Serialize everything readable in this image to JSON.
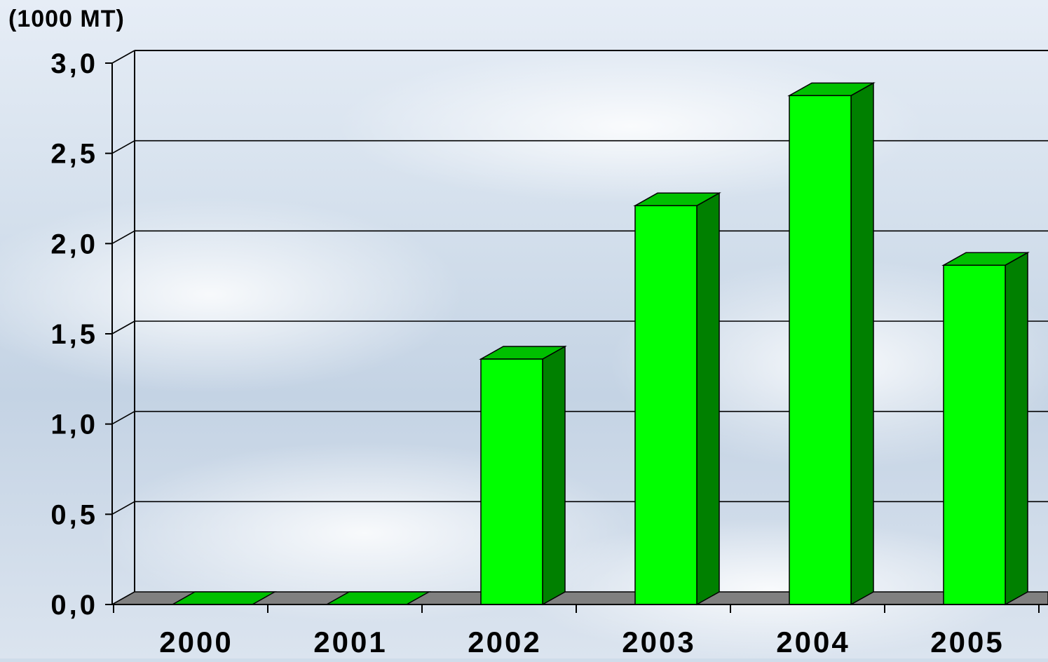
{
  "chart_data": {
    "type": "bar",
    "unit_label": "(1000 MT)",
    "categories": [
      "2000",
      "2001",
      "2002",
      "2003",
      "2004",
      "2005"
    ],
    "values": [
      0,
      0,
      1.36,
      2.21,
      2.82,
      1.88
    ],
    "y_ticks": [
      "0,0",
      "0,5",
      "1,0",
      "1,5",
      "2,0",
      "2,5",
      "3,0"
    ],
    "ylim": [
      0,
      3.0
    ],
    "grid": true,
    "three_d": true,
    "colors": {
      "bar_front": "#00ff00",
      "bar_side": "#008000",
      "bar_top": "#00c000",
      "floor": "#808080",
      "grid": "#000000"
    }
  }
}
